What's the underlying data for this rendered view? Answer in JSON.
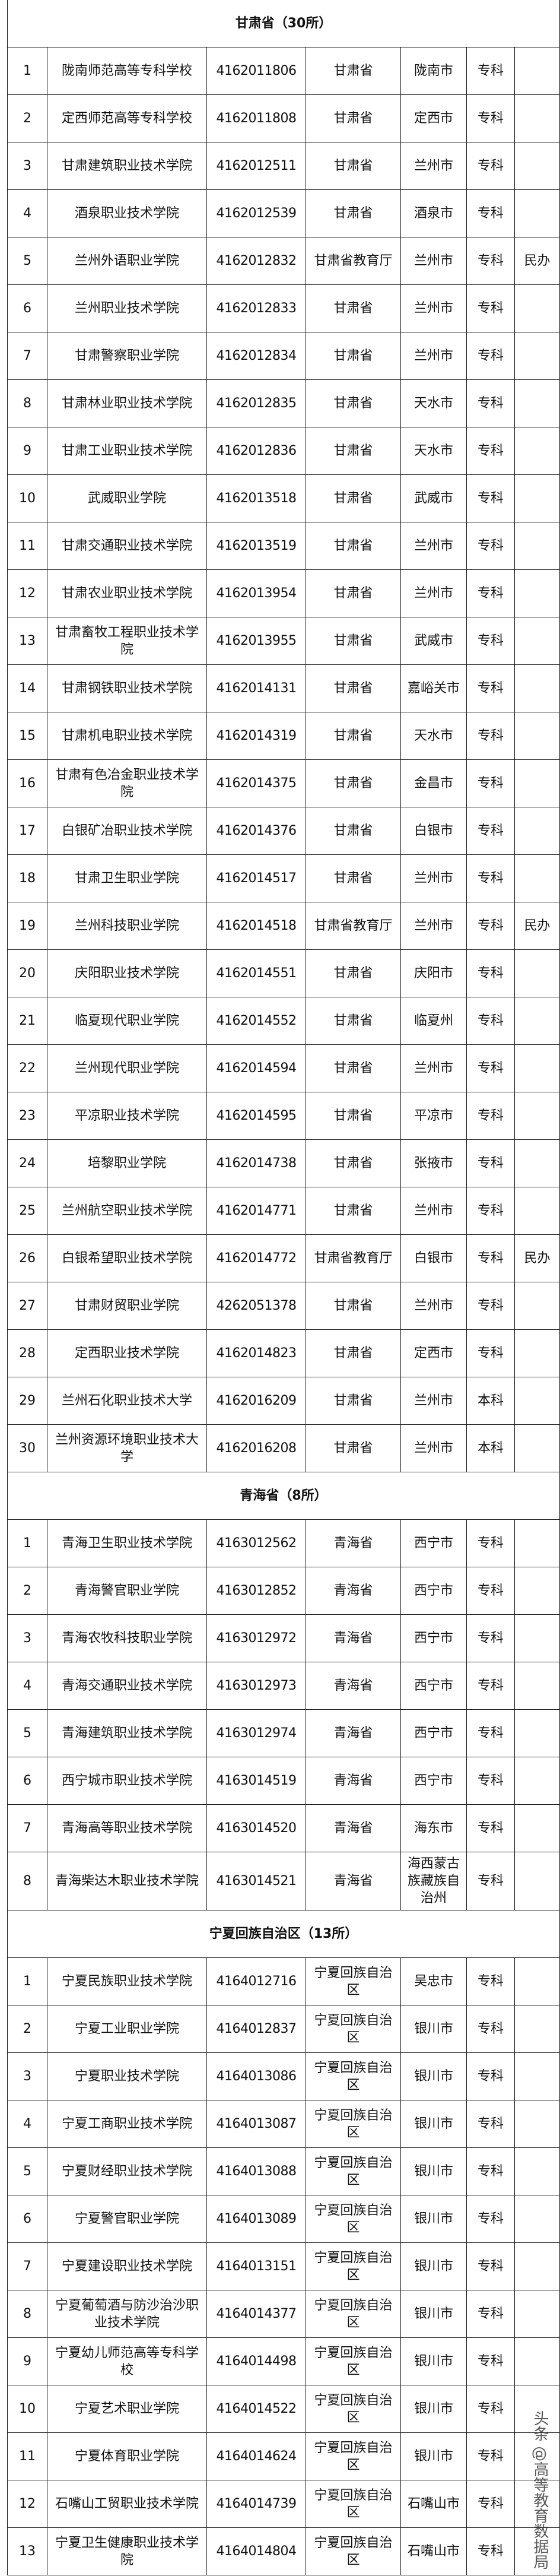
{
  "sections": [
    {
      "title": "甘肃省（30所）",
      "rows": [
        [
          "1",
          "陇南师范高等专科学校",
          "4162011806",
          "甘肃省",
          "陇南市",
          "专科",
          ""
        ],
        [
          "2",
          "定西师范高等专科学校",
          "4162011808",
          "甘肃省",
          "定西市",
          "专科",
          ""
        ],
        [
          "3",
          "甘肃建筑职业技术学院",
          "4162012511",
          "甘肃省",
          "兰州市",
          "专科",
          ""
        ],
        [
          "4",
          "酒泉职业技术学院",
          "4162012539",
          "甘肃省",
          "酒泉市",
          "专科",
          ""
        ],
        [
          "5",
          "兰州外语职业学院",
          "4162012832",
          "甘肃省教育厅",
          "兰州市",
          "专科",
          "民办"
        ],
        [
          "6",
          "兰州职业技术学院",
          "4162012833",
          "甘肃省",
          "兰州市",
          "专科",
          ""
        ],
        [
          "7",
          "甘肃警察职业学院",
          "4162012834",
          "甘肃省",
          "兰州市",
          "专科",
          ""
        ],
        [
          "8",
          "甘肃林业职业技术学院",
          "4162012835",
          "甘肃省",
          "天水市",
          "专科",
          ""
        ],
        [
          "9",
          "甘肃工业职业技术学院",
          "4162012836",
          "甘肃省",
          "天水市",
          "专科",
          ""
        ],
        [
          "10",
          "武威职业学院",
          "4162013518",
          "甘肃省",
          "武威市",
          "专科",
          ""
        ],
        [
          "11",
          "甘肃交通职业技术学院",
          "4162013519",
          "甘肃省",
          "兰州市",
          "专科",
          ""
        ],
        [
          "12",
          "甘肃农业职业技术学院",
          "4162013954",
          "甘肃省",
          "兰州市",
          "专科",
          ""
        ],
        [
          "13",
          "甘肃畜牧工程职业技术学院",
          "4162013955",
          "甘肃省",
          "武威市",
          "专科",
          ""
        ],
        [
          "14",
          "甘肃钢铁职业技术学院",
          "4162014131",
          "甘肃省",
          "嘉峪关市",
          "专科",
          ""
        ],
        [
          "15",
          "甘肃机电职业技术学院",
          "4162014319",
          "甘肃省",
          "天水市",
          "专科",
          ""
        ],
        [
          "16",
          "甘肃有色冶金职业技术学院",
          "4162014375",
          "甘肃省",
          "金昌市",
          "专科",
          ""
        ],
        [
          "17",
          "白银矿冶职业技术学院",
          "4162014376",
          "甘肃省",
          "白银市",
          "专科",
          ""
        ],
        [
          "18",
          "甘肃卫生职业学院",
          "4162014517",
          "甘肃省",
          "兰州市",
          "专科",
          ""
        ],
        [
          "19",
          "兰州科技职业学院",
          "4162014518",
          "甘肃省教育厅",
          "兰州市",
          "专科",
          "民办"
        ],
        [
          "20",
          "庆阳职业技术学院",
          "4162014551",
          "甘肃省",
          "庆阳市",
          "专科",
          ""
        ],
        [
          "21",
          "临夏现代职业学院",
          "4162014552",
          "甘肃省",
          "临夏州",
          "专科",
          ""
        ],
        [
          "22",
          "兰州现代职业学院",
          "4162014594",
          "甘肃省",
          "兰州市",
          "专科",
          ""
        ],
        [
          "23",
          "平凉职业技术学院",
          "4162014595",
          "甘肃省",
          "平凉市",
          "专科",
          ""
        ],
        [
          "24",
          "培黎职业学院",
          "4162014738",
          "甘肃省",
          "张掖市",
          "专科",
          ""
        ],
        [
          "25",
          "兰州航空职业技术学院",
          "4162014771",
          "甘肃省",
          "兰州市",
          "专科",
          ""
        ],
        [
          "26",
          "白银希望职业技术学院",
          "4162014772",
          "甘肃省教育厅",
          "白银市",
          "专科",
          "民办"
        ],
        [
          "27",
          "甘肃财贸职业学院",
          "4262051378",
          "甘肃省",
          "兰州市",
          "专科",
          ""
        ],
        [
          "28",
          "定西职业技术学院",
          "4162014823",
          "甘肃省",
          "定西市",
          "专科",
          ""
        ],
        [
          "29",
          "兰州石化职业技术大学",
          "4162016209",
          "甘肃省",
          "兰州市",
          "本科",
          ""
        ],
        [
          "30",
          "兰州资源环境职业技术大学",
          "4162016208",
          "甘肃省",
          "兰州市",
          "本科",
          ""
        ]
      ]
    },
    {
      "title": "青海省（8所）",
      "rows": [
        [
          "1",
          "青海卫生职业技术学院",
          "4163012562",
          "青海省",
          "西宁市",
          "专科",
          ""
        ],
        [
          "2",
          "青海警官职业学院",
          "4163012852",
          "青海省",
          "西宁市",
          "专科",
          ""
        ],
        [
          "3",
          "青海农牧科技职业学院",
          "4163012972",
          "青海省",
          "西宁市",
          "专科",
          ""
        ],
        [
          "4",
          "青海交通职业技术学院",
          "4163012973",
          "青海省",
          "西宁市",
          "专科",
          ""
        ],
        [
          "5",
          "青海建筑职业技术学院",
          "4163012974",
          "青海省",
          "西宁市",
          "专科",
          ""
        ],
        [
          "6",
          "西宁城市职业技术学院",
          "4163014519",
          "青海省",
          "西宁市",
          "专科",
          ""
        ],
        [
          "7",
          "青海高等职业技术学院",
          "4163014520",
          "青海省",
          "海东市",
          "专科",
          ""
        ],
        [
          "8",
          "青海柴达木职业技术学院",
          "4163014521",
          "青海省",
          "海西蒙古族藏族自治州",
          "专科",
          ""
        ]
      ]
    },
    {
      "title": "宁夏回族自治区（13所）",
      "rows": [
        [
          "1",
          "宁夏民族职业技术学院",
          "4164012716",
          "宁夏回族自治区",
          "吴忠市",
          "专科",
          ""
        ],
        [
          "2",
          "宁夏工业职业学院",
          "4164012837",
          "宁夏回族自治区",
          "银川市",
          "专科",
          ""
        ],
        [
          "3",
          "宁夏职业技术学院",
          "4164013086",
          "宁夏回族自治区",
          "银川市",
          "专科",
          ""
        ],
        [
          "4",
          "宁夏工商职业技术学院",
          "4164013087",
          "宁夏回族自治区",
          "银川市",
          "专科",
          ""
        ],
        [
          "5",
          "宁夏财经职业技术学院",
          "4164013088",
          "宁夏回族自治区",
          "银川市",
          "专科",
          ""
        ],
        [
          "6",
          "宁夏警官职业学院",
          "4164013089",
          "宁夏回族自治区",
          "银川市",
          "专科",
          ""
        ],
        [
          "7",
          "宁夏建设职业技术学院",
          "4164013151",
          "宁夏回族自治区",
          "银川市",
          "专科",
          ""
        ],
        [
          "8",
          "宁夏葡萄酒与防沙治沙职业技术学院",
          "4164014377",
          "宁夏回族自治区",
          "银川市",
          "专科",
          ""
        ],
        [
          "9",
          "宁夏幼儿师范高等专科学校",
          "4164014498",
          "宁夏回族自治区",
          "银川市",
          "专科",
          ""
        ],
        [
          "10",
          "宁夏艺术职业学院",
          "4164014522",
          "宁夏回族自治区",
          "银川市",
          "专科",
          ""
        ],
        [
          "11",
          "宁夏体育职业学院",
          "4164014624",
          "宁夏回族自治区",
          "银川市",
          "专科",
          ""
        ],
        [
          "12",
          "石嘴山工贸职业技术学院",
          "4164014739",
          "宁夏回族自治区",
          "石嘴山市",
          "专科",
          ""
        ],
        [
          "13",
          "宁夏卫生健康职业技术学院",
          "4164014804",
          "宁夏回族自治区",
          "石嘴山市",
          "专科",
          ""
        ]
      ]
    }
  ],
  "watermark": "头条 @高等教育数据局"
}
